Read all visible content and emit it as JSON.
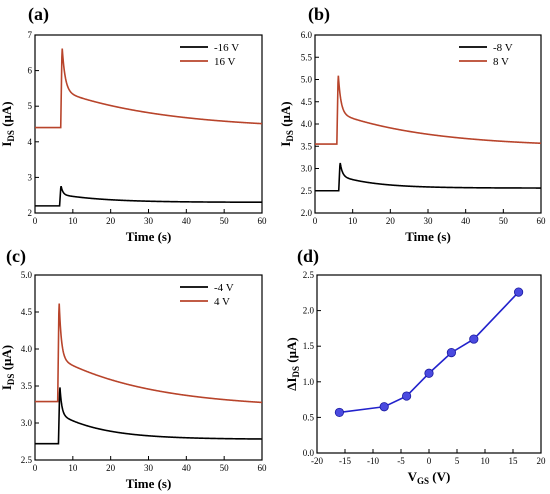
{
  "chart_data": [
    {
      "panel": "(a)",
      "type": "line",
      "xlabel": "Time (s)",
      "ylabel_main": "I",
      "ylabel_sub": "DS",
      "ylabel_tail": " (μA)",
      "xlim": [
        0,
        60
      ],
      "ylim": [
        2,
        7
      ],
      "xticks": [
        0,
        10,
        20,
        30,
        40,
        50,
        60
      ],
      "yticks": [
        2,
        3,
        4,
        5,
        6,
        7
      ],
      "legend_position": "top-right",
      "series": [
        {
          "name": "-16 V",
          "color": "#000000",
          "kind": "pulse",
          "base": 2.2,
          "pulse_t": 6.5,
          "peak": 2.78,
          "end": 2.3,
          "tau_fast": 0.5,
          "tau_slow": 12
        },
        {
          "name": "16 V",
          "color": "#b8442b",
          "kind": "pulse",
          "base": 4.4,
          "pulse_t": 6.8,
          "peak": 6.7,
          "end": 4.35,
          "tau_fast": 0.8,
          "tau_slow": 28
        }
      ]
    },
    {
      "panel": "(b)",
      "type": "line",
      "xlabel": "Time (s)",
      "ylabel_main": "I",
      "ylabel_sub": "DS",
      "ylabel_tail": " (μA)",
      "xlim": [
        0,
        60
      ],
      "ylim": [
        2,
        6
      ],
      "xticks": [
        0,
        10,
        20,
        30,
        40,
        50,
        60
      ],
      "yticks": [
        2.0,
        2.5,
        3.0,
        3.5,
        4.0,
        4.5,
        5.0,
        5.5,
        6.0
      ],
      "ytick_decimals": 1,
      "legend_position": "top-right",
      "series": [
        {
          "name": "-8 V",
          "color": "#000000",
          "kind": "pulse",
          "base": 2.5,
          "pulse_t": 6.3,
          "peak": 3.15,
          "end": 2.56,
          "tau_fast": 0.6,
          "tau_slow": 10
        },
        {
          "name": "8 V",
          "color": "#b8442b",
          "kind": "pulse",
          "base": 3.55,
          "pulse_t": 5.8,
          "peak": 5.15,
          "end": 3.48,
          "tau_fast": 0.7,
          "tau_slow": 25
        }
      ]
    },
    {
      "panel": "(c)",
      "type": "line",
      "xlabel": "Time (s)",
      "ylabel_main": "I",
      "ylabel_sub": "DS",
      "ylabel_tail": " (μA)",
      "xlim": [
        0,
        60
      ],
      "ylim": [
        2.5,
        5.0
      ],
      "xticks": [
        0,
        10,
        20,
        30,
        40,
        50,
        60
      ],
      "yticks": [
        2.5,
        3.0,
        3.5,
        4.0,
        4.5,
        5.0
      ],
      "ytick_decimals": 1,
      "legend_position": "top-right",
      "series": [
        {
          "name": "-4 V",
          "color": "#000000",
          "kind": "pulse",
          "base": 2.72,
          "pulse_t": 6.2,
          "peak": 3.52,
          "end": 2.78,
          "tau_fast": 0.5,
          "tau_slow": 12
        },
        {
          "name": "4 V",
          "color": "#b8442b",
          "kind": "pulse",
          "base": 3.29,
          "pulse_t": 6.0,
          "peak": 4.68,
          "end": 3.2,
          "tau_fast": 0.6,
          "tau_slow": 25
        }
      ]
    },
    {
      "panel": "(d)",
      "type": "scatter",
      "xlabel_main": "V",
      "xlabel_sub": "GS",
      "xlabel_tail": " (V)",
      "ylabel_main": "ΔI",
      "ylabel_sub": "DS",
      "ylabel_tail": " (μA)",
      "xlim": [
        -20,
        20
      ],
      "ylim": [
        0.0,
        2.5
      ],
      "xticks": [
        -20,
        -15,
        -10,
        -5,
        0,
        5,
        10,
        15,
        20
      ],
      "yticks": [
        0.0,
        0.5,
        1.0,
        1.5,
        2.0,
        2.5
      ],
      "ytick_decimals": 1,
      "series": [
        {
          "color": "#2222cc",
          "x": [
            -16,
            -8,
            -4,
            0,
            4,
            8,
            16
          ],
          "y": [
            0.57,
            0.65,
            0.8,
            1.12,
            1.41,
            1.6,
            2.26
          ]
        }
      ]
    }
  ]
}
